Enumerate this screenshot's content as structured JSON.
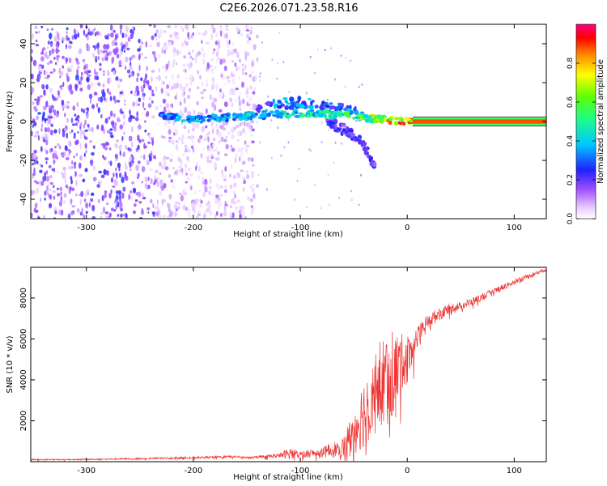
{
  "title": "C2E6.2026.071.23.58.R16",
  "chart_data": [
    {
      "type": "heatmap",
      "title": "C2E6.2026.071.23.58.R16",
      "xlabel": "Height of straight line (km)",
      "ylabel": "Frequency (Hz)",
      "xlim": [
        -352,
        130
      ],
      "ylim": [
        -50,
        50
      ],
      "x_ticks": [
        -300,
        -200,
        -100,
        0,
        100
      ],
      "x_tick_labels": [
        "-300",
        "-200",
        "-100",
        "0",
        "100"
      ],
      "y_ticks": [
        -40,
        -20,
        0,
        20,
        40
      ],
      "y_tick_labels": [
        "-40",
        "-20",
        "0",
        "20",
        "40"
      ],
      "colorbar": {
        "label": "Normalized spectral amplitude",
        "range": [
          0,
          1
        ],
        "ticks": [
          0.0,
          0.2,
          0.4,
          0.6,
          0.8
        ],
        "tick_labels": [
          "0.0",
          "0.2",
          "0.4",
          "0.6",
          "0.8"
        ]
      },
      "features": [
        {
          "name": "noise-field",
          "x_range": [
            -352,
            -140
          ],
          "freq_range": [
            -50,
            50
          ],
          "amplitude": 0.12
        },
        {
          "name": "carrier-track",
          "x": [
            -230,
            -200,
            -170,
            -140,
            -110,
            -80,
            -60,
            -40,
            -20,
            0,
            130
          ],
          "freq": [
            3,
            1,
            2,
            3,
            4,
            4,
            3,
            2,
            1,
            0,
            0
          ],
          "amplitude": [
            0.35,
            0.4,
            0.4,
            0.45,
            0.5,
            0.5,
            0.55,
            0.65,
            0.8,
            0.9,
            0.95
          ]
        },
        {
          "name": "upper-branch",
          "x": [
            -140,
            -120,
            -100,
            -80,
            -60,
            -40
          ],
          "freq": [
            6,
            9,
            10,
            8,
            6,
            3
          ],
          "amplitude": 0.35
        },
        {
          "name": "lower-branch",
          "x": [
            -75,
            -60,
            -50,
            -40,
            -35,
            -30
          ],
          "freq": [
            0,
            -4,
            -7,
            -12,
            -18,
            -24
          ],
          "amplitude": 0.25
        }
      ]
    },
    {
      "type": "line",
      "xlabel": "Height of straight line (km)",
      "ylabel": "SNR (10 * v/v)",
      "xlim": [
        -352,
        130
      ],
      "ylim": [
        0,
        9500
      ],
      "x_ticks": [
        -300,
        -200,
        -100,
        0,
        100
      ],
      "x_tick_labels": [
        "-300",
        "-200",
        "-100",
        "0",
        "100"
      ],
      "y_ticks": [
        2000,
        4000,
        6000,
        8000
      ],
      "y_tick_labels": [
        "2000",
        "4000",
        "6000",
        "8000"
      ],
      "color": "#ee3333",
      "series": [
        {
          "name": "SNR",
          "x": [
            -352,
            -300,
            -250,
            -200,
            -160,
            -150,
            -120,
            -110,
            -100,
            -80,
            -60,
            -50,
            -40,
            -30,
            -20,
            -15,
            -10,
            0,
            10,
            20,
            30,
            40,
            50,
            60,
            80,
            100,
            120,
            130
          ],
          "y": [
            100,
            110,
            150,
            200,
            250,
            200,
            300,
            400,
            350,
            450,
            700,
            1500,
            2500,
            3500,
            4000,
            4300,
            4500,
            5200,
            6000,
            6900,
            7200,
            7500,
            7600,
            7800,
            8300,
            8800,
            9200,
            9400
          ],
          "noise_amplitude": [
            30,
            30,
            40,
            50,
            60,
            40,
            100,
            300,
            150,
            250,
            500,
            1200,
            1800,
            2200,
            2400,
            2400,
            1800,
            1000,
            600,
            400,
            300,
            250,
            200,
            200,
            150,
            150,
            100,
            80
          ]
        }
      ]
    }
  ]
}
